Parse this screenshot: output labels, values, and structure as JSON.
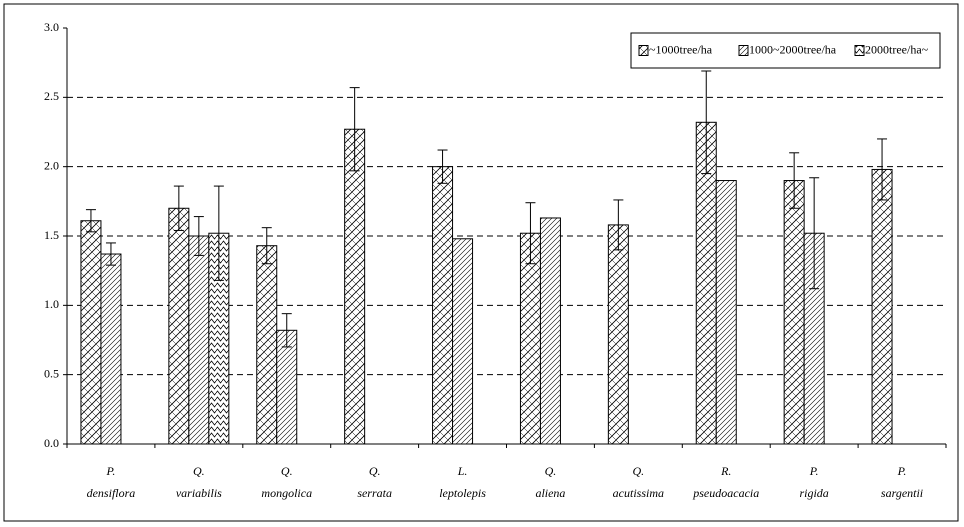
{
  "chart_data": {
    "type": "bar",
    "categories": [
      [
        "P.",
        "densiflora"
      ],
      [
        "Q.",
        "variabilis"
      ],
      [
        "Q.",
        "mongolica"
      ],
      [
        "Q.",
        "serrata"
      ],
      [
        "L.",
        "leptolepis"
      ],
      [
        "Q.",
        "aliena"
      ],
      [
        "Q.",
        "acutissima"
      ],
      [
        "R.",
        "pseudoacacia"
      ],
      [
        "P.",
        "rigida"
      ],
      [
        "P.",
        "sargentii"
      ]
    ],
    "series": [
      {
        "name": "~1000tree/ha",
        "color": "#000000",
        "pattern": "crosshatch",
        "values": [
          1.61,
          1.7,
          1.43,
          2.27,
          2.0,
          1.52,
          1.58,
          2.32,
          1.9,
          1.98
        ],
        "errors": [
          0.08,
          0.16,
          0.13,
          0.3,
          0.12,
          0.22,
          0.18,
          0.37,
          0.2,
          0.22
        ]
      },
      {
        "name": "1000~2000tree/ha",
        "color": "#000000",
        "pattern": "diagonal",
        "values": [
          1.37,
          1.5,
          0.82,
          null,
          1.48,
          1.63,
          null,
          1.9,
          1.52,
          null
        ],
        "errors": [
          0.08,
          0.14,
          0.12,
          null,
          null,
          null,
          null,
          null,
          0.4,
          null
        ]
      },
      {
        "name": "2000tree/ha~",
        "color": "#000000",
        "pattern": "wave",
        "values": [
          null,
          1.52,
          null,
          null,
          null,
          null,
          null,
          null,
          null,
          null
        ],
        "errors": [
          null,
          0.34,
          null,
          null,
          null,
          null,
          null,
          null,
          null,
          null
        ]
      }
    ],
    "ylim": [
      0,
      3.0
    ],
    "yticks": [
      {
        "value": 0,
        "label": "0.0"
      },
      0.5,
      {
        "value": 1,
        "label": "1.0"
      },
      1.5,
      {
        "value": 2,
        "label": "2.0"
      },
      2.5,
      {
        "value": 3,
        "label": "3.0"
      }
    ],
    "grid": true,
    "legend": "upper right"
  }
}
